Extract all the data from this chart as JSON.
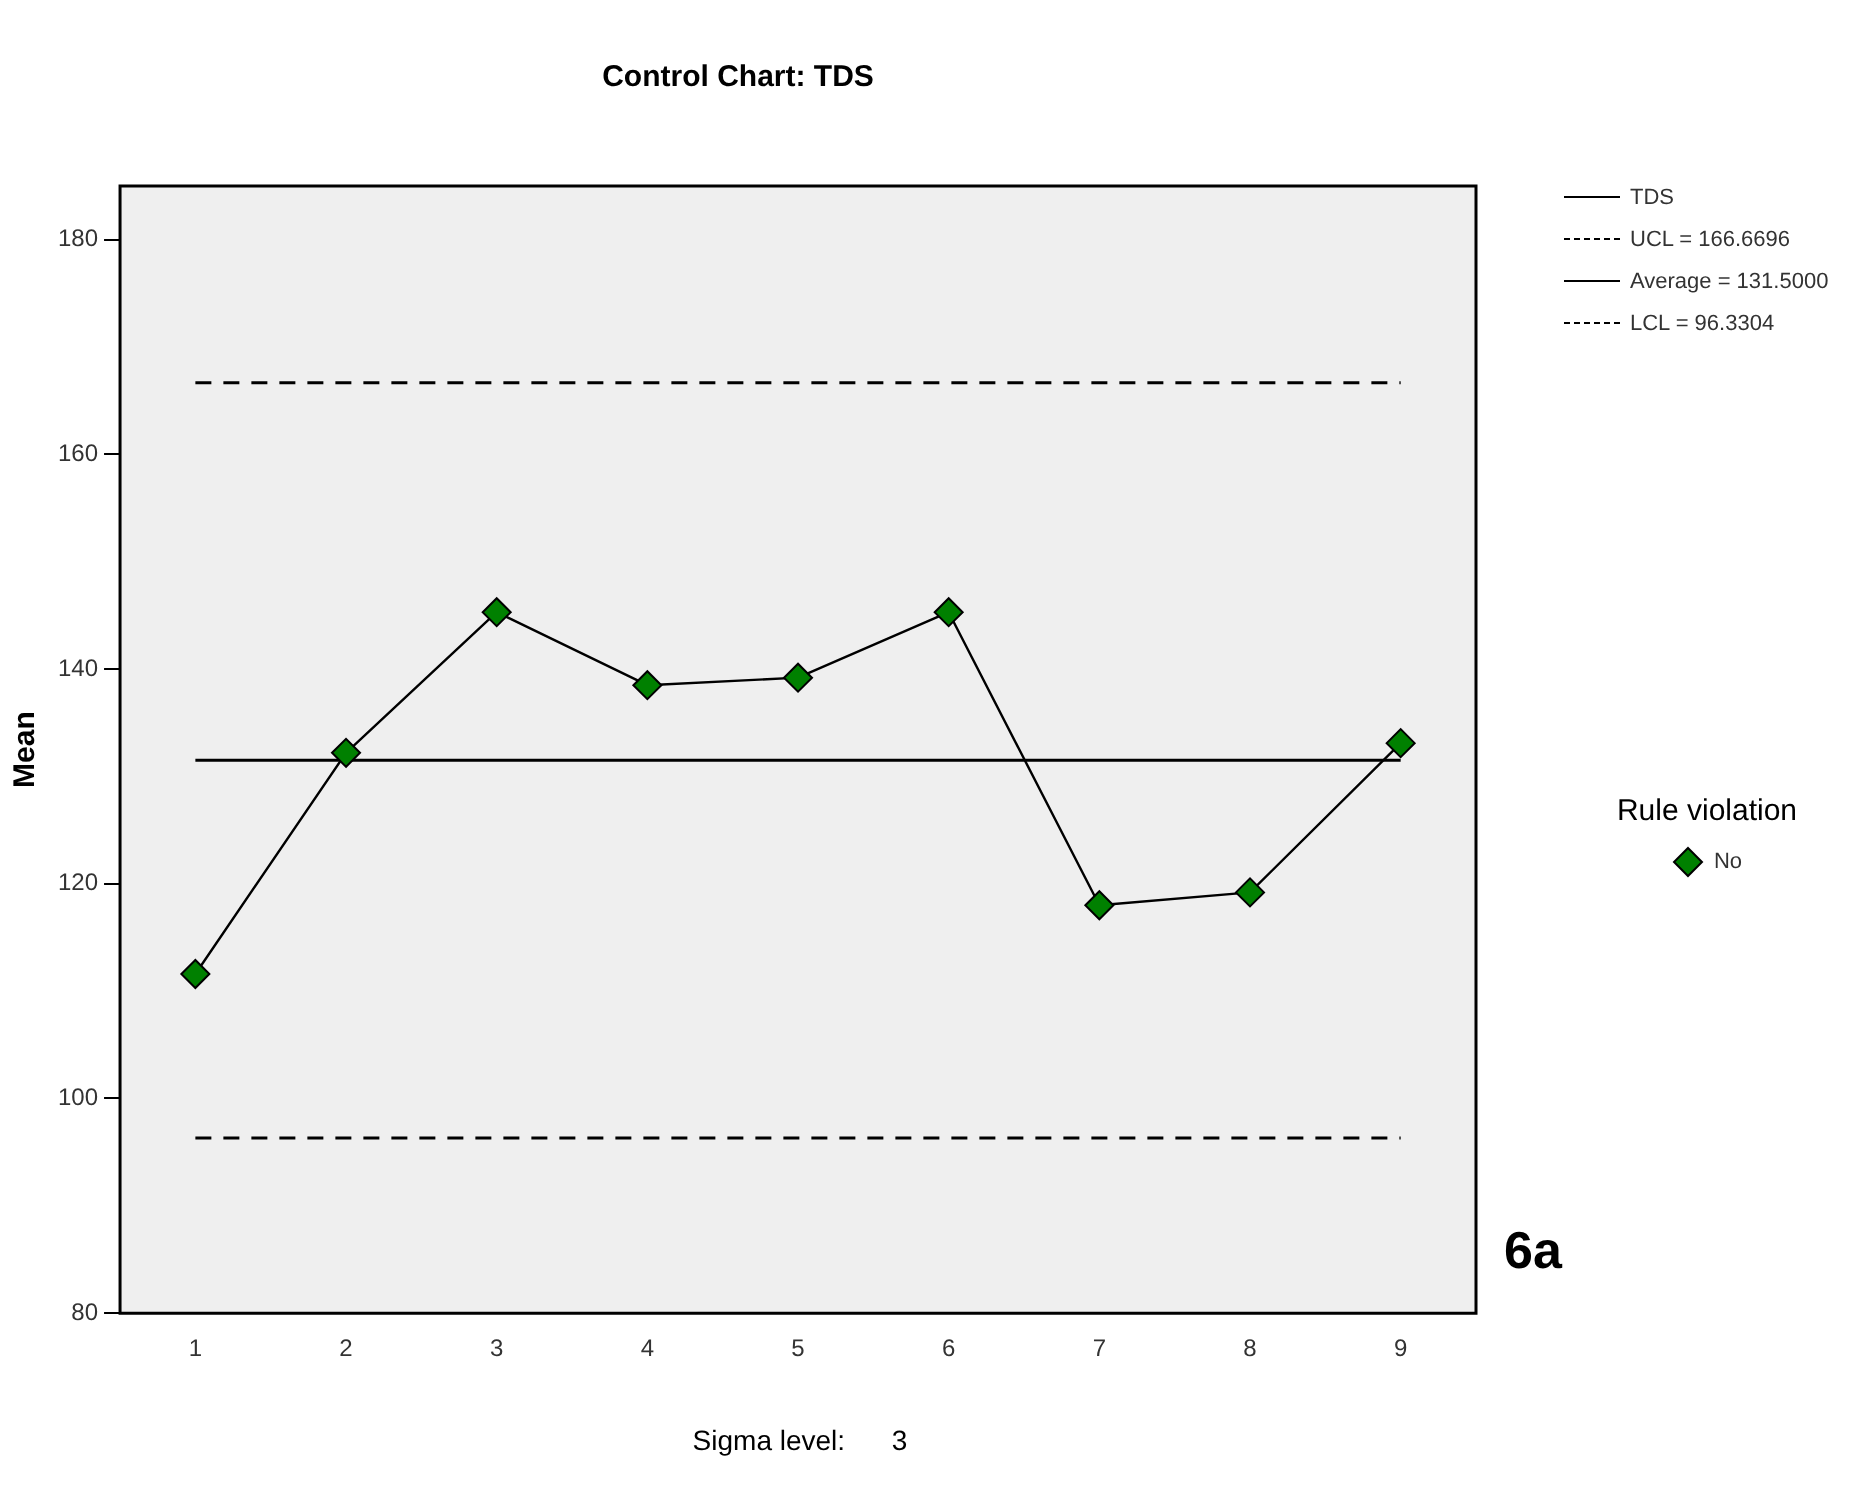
{
  "chart_data": {
    "type": "line",
    "title": "Control Chart: TDS",
    "ylabel": "Mean",
    "legend_title": "Rule violation",
    "categories": [
      "1",
      "2",
      "3",
      "4",
      "5",
      "6",
      "7",
      "8",
      "9"
    ],
    "series": [
      {
        "name": "TDS",
        "type": "line",
        "color": "#000000",
        "marker": "none",
        "values": [
          111.6,
          132.2,
          145.3,
          138.5,
          139.2,
          145.3,
          118.0,
          119.2,
          133.1
        ]
      },
      {
        "name": "No",
        "type": "scatter",
        "color": "#008000",
        "marker": "diamond",
        "x": [
          "1",
          "2",
          "3",
          "4",
          "5",
          "6",
          "7",
          "8",
          "9"
        ],
        "values": [
          111.6,
          132.2,
          145.3,
          138.5,
          139.2,
          145.3,
          118.0,
          119.2,
          133.1
        ]
      }
    ],
    "ref_lines": [
      {
        "axis": "y",
        "value": 166.6696,
        "label": "UCL = 166.6696",
        "line_style": "dashed",
        "color": "#000000"
      },
      {
        "axis": "y",
        "value": 131.5,
        "label": "Average = 131.5000",
        "line_style": "solid",
        "color": "#000000"
      },
      {
        "axis": "y",
        "value": 96.3304,
        "label": "LCL = 96.3304",
        "line_style": "dashed",
        "color": "#000000"
      }
    ],
    "ylim": [
      80,
      185
    ],
    "yticks": [
      80,
      100,
      120,
      140,
      160,
      180
    ],
    "grid": false,
    "legend": "right",
    "annotations": [
      "Sigma level:      3",
      "6a"
    ]
  }
}
